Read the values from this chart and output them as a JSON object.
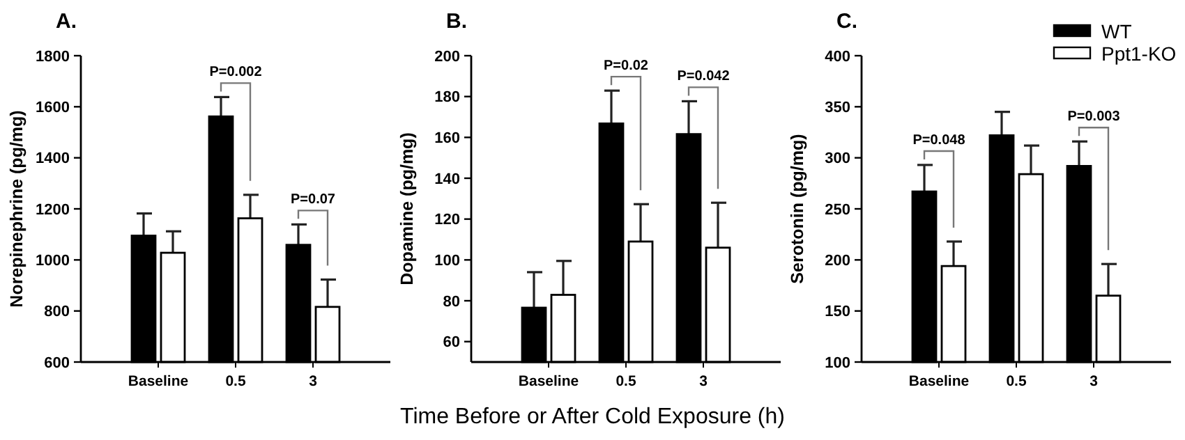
{
  "chart_data": [
    {
      "type": "bar",
      "title": "A.",
      "ylabel": "Norepinephrine (pg/mg)",
      "categories": [
        "Baseline",
        "0.5",
        "3"
      ],
      "ylim": [
        600,
        1800
      ],
      "yticks": [
        600,
        800,
        1000,
        1200,
        1400,
        1600,
        1800
      ],
      "series": [
        {
          "color": "#000000",
          "values": [
            1095,
            1562,
            1059
          ],
          "errors": [
            [
              1095,
              1182
            ],
            [
              1562,
              1638
            ],
            [
              1059,
              1139
            ]
          ]
        },
        {
          "color": "#ffffff",
          "values": [
            1028,
            1163,
            816
          ],
          "errors": [
            [
              1028,
              1112
            ],
            [
              1163,
              1255
            ],
            [
              816,
              923
            ]
          ]
        }
      ],
      "annotations": [
        {
          "text": "P=0.002",
          "x": "0.5",
          "y": 1638
        },
        {
          "text": "P=0.07",
          "x": "3",
          "y": 1139
        }
      ]
    },
    {
      "type": "bar",
      "title": "B.",
      "ylabel": "Dopamine (pg/mg)",
      "xlabel": "Time Before or After Cold Exposure (h)",
      "categories": [
        "Baseline",
        "0.5",
        "3"
      ],
      "ylim": [
        50,
        200
      ],
      "yticks": [
        60,
        80,
        100,
        120,
        140,
        160,
        180,
        200
      ],
      "series": [
        {
          "color": "#000000",
          "values": [
            76.6,
            166.8,
            161.6
          ],
          "errors": [
            [
              76.6,
              94
            ],
            [
              166.8,
              182.9
            ],
            [
              161.6,
              177.7
            ]
          ]
        },
        {
          "color": "#ffffff",
          "values": [
            82.9,
            109,
            106
          ],
          "errors": [
            [
              82.9,
              99.5
            ],
            [
              109,
              127.3
            ],
            [
              106,
              128
            ]
          ]
        }
      ],
      "annotations": [
        {
          "text": "P=0.02",
          "x": "0.5",
          "y": 182.9
        },
        {
          "text": "P=0.042",
          "x": "3",
          "y": 177.7
        }
      ]
    },
    {
      "type": "bar",
      "title": "C.",
      "ylabel": "Serotonin (pg/mg)",
      "categories": [
        "Baseline",
        "0.5",
        "3"
      ],
      "ylim": [
        100,
        400
      ],
      "yticks": [
        100,
        150,
        200,
        250,
        300,
        350,
        400
      ],
      "legend": "top right",
      "series": [
        {
          "name": "WT",
          "color": "#000000",
          "values": [
            267,
            322,
            292
          ],
          "errors": [
            [
              267,
              293
            ],
            [
              322,
              345
            ],
            [
              292,
              316
            ]
          ]
        },
        {
          "name": "Ppt1-KO",
          "color": "#ffffff",
          "values": [
            194,
            284,
            165
          ],
          "errors": [
            [
              194,
              218
            ],
            [
              284,
              312
            ],
            [
              165,
              196
            ]
          ]
        }
      ],
      "annotations": [
        {
          "text": "P=0.048",
          "x": "Baseline",
          "y": 293
        },
        {
          "text": "P=0.003",
          "x": "3",
          "y": 316
        }
      ]
    }
  ]
}
